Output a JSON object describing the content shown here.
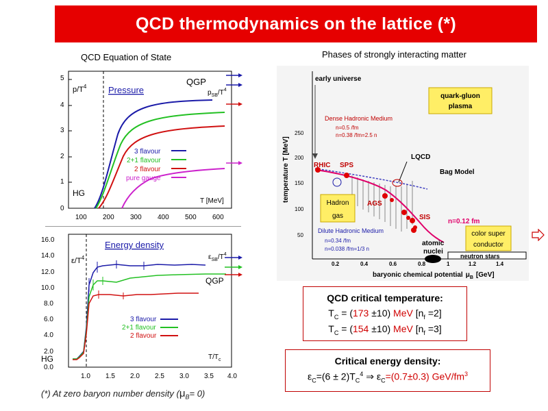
{
  "slide": {
    "title": "QCD thermodynamics on the lattice (*)",
    "footnote": "(*) At zero baryon number density (",
    "footnote_mu": "μ",
    "footnote_tail": "B",
    "footnote_end": "= 0)"
  },
  "left_caption": "QCD Equation of State",
  "right_caption": "Phases of strongly interacting matter",
  "colors": {
    "title_bg": "#e60000",
    "blue": "#1a1aa8",
    "green": "#22c022",
    "red": "#d01010",
    "magenta": "#cc22cc",
    "accent": "#cc0000"
  },
  "pressure_plot": {
    "ylabel": "p/T",
    "ylabel_sup": "4",
    "title": "Pressure",
    "qgp": "QGP",
    "sb_label": "p",
    "sb_sub": "SB",
    "sb_tail": "/T",
    "sb_sup": "4",
    "hg": "HG",
    "xlabel": "T [MeV]",
    "xticks": [
      "100",
      "200",
      "300",
      "400",
      "500",
      "600"
    ],
    "yticks": [
      "0",
      "1",
      "2",
      "3",
      "4",
      "5"
    ],
    "legend": [
      "3 flavour",
      "2+1 flavour",
      "2 flavour",
      "pure gauge"
    ]
  },
  "energy_plot": {
    "title": "Energy density",
    "ylabel": "ε/T",
    "ylabel_sup": "4",
    "sb_label": "ε",
    "sb_sub": "SB",
    "sb_tail": "/T",
    "sb_sup": "4",
    "qgp": "QGP",
    "hg": "HG",
    "xlabel": "T/T",
    "xlabel_sub": "c",
    "xticks": [
      "1.0",
      "1.5",
      "2.0",
      "2.5",
      "3.0",
      "3.5",
      "4.0"
    ],
    "yticks": [
      "0.0",
      "2.0",
      "4.0",
      "6.0",
      "8.0",
      "10.0",
      "12.0",
      "14.0",
      "16.0"
    ],
    "legend": [
      "3 flavour",
      "2+1 flavour",
      "2 flavour"
    ]
  },
  "phase_diagram": {
    "early_universe": "early universe",
    "qgp_l1": "quark-gluon",
    "qgp_l2": "plasma",
    "dense_title": "Dense Hadronic Medium",
    "dense_l1": "n",
    "dense_l1b": "=0.5 /fm",
    "dense_l2": "n",
    "dense_l2b": "=0.38 /fm",
    "dense_l2c": "=2.5 n",
    "ylabel": "temperature T [MeV]",
    "yticks": [
      "50",
      "100",
      "150",
      "200",
      "250"
    ],
    "rhic": "RHIC",
    "sps": "SPS",
    "lqcd": "LQCD",
    "bag": "Bag Model",
    "ags": "AGS",
    "sis": "SIS",
    "hadron_l1": "Hadron",
    "hadron_l2": "gas",
    "dilute_title": "Dilute Hadronic Medium",
    "dilute_l1": "n",
    "dilute_l1b": "=0.34 /fm",
    "dilute_l2": "n",
    "dilute_l2b": "=0.038 /fm",
    "dilute_l2c": "=1/3 n",
    "nb_label": "n",
    "nb_tail": "=0.12 fm",
    "atomic_l1": "atomic",
    "atomic_l2": "nuclei",
    "neutron": "neutron stars",
    "csc_l1": "color super",
    "csc_l2": "conductor",
    "xlabel": "baryonic chemical potential",
    "xlabel_mu": "μ",
    "xlabel_unit": "[GeV]",
    "xticks": [
      "0.2",
      "0.4",
      "0.6",
      "0.8",
      "1",
      "1.2",
      "1.4"
    ]
  },
  "tc_box": {
    "title": "QCD critical temperature:",
    "l1_pre": "T",
    "l1_sub": "C",
    "l1_mid": " = (",
    "l1_val": "173",
    "l1_err": " ±10) ",
    "l1_unit": "MeV",
    "l1_tail": " [n",
    "l1_f": "f",
    "l1_end": " =2]",
    "l2_val": "154",
    "l2_end": " =3]"
  },
  "ec_box": {
    "title": "Critical energy density:",
    "formula_a": "ε",
    "formula_b": "=(6 ± 2)T",
    "formula_c": "4",
    "formula_d": " ⇒ ε",
    "formula_e": "=(0.7±0.3) GeV/fm",
    "formula_f": "3",
    "sub_c": "C"
  }
}
